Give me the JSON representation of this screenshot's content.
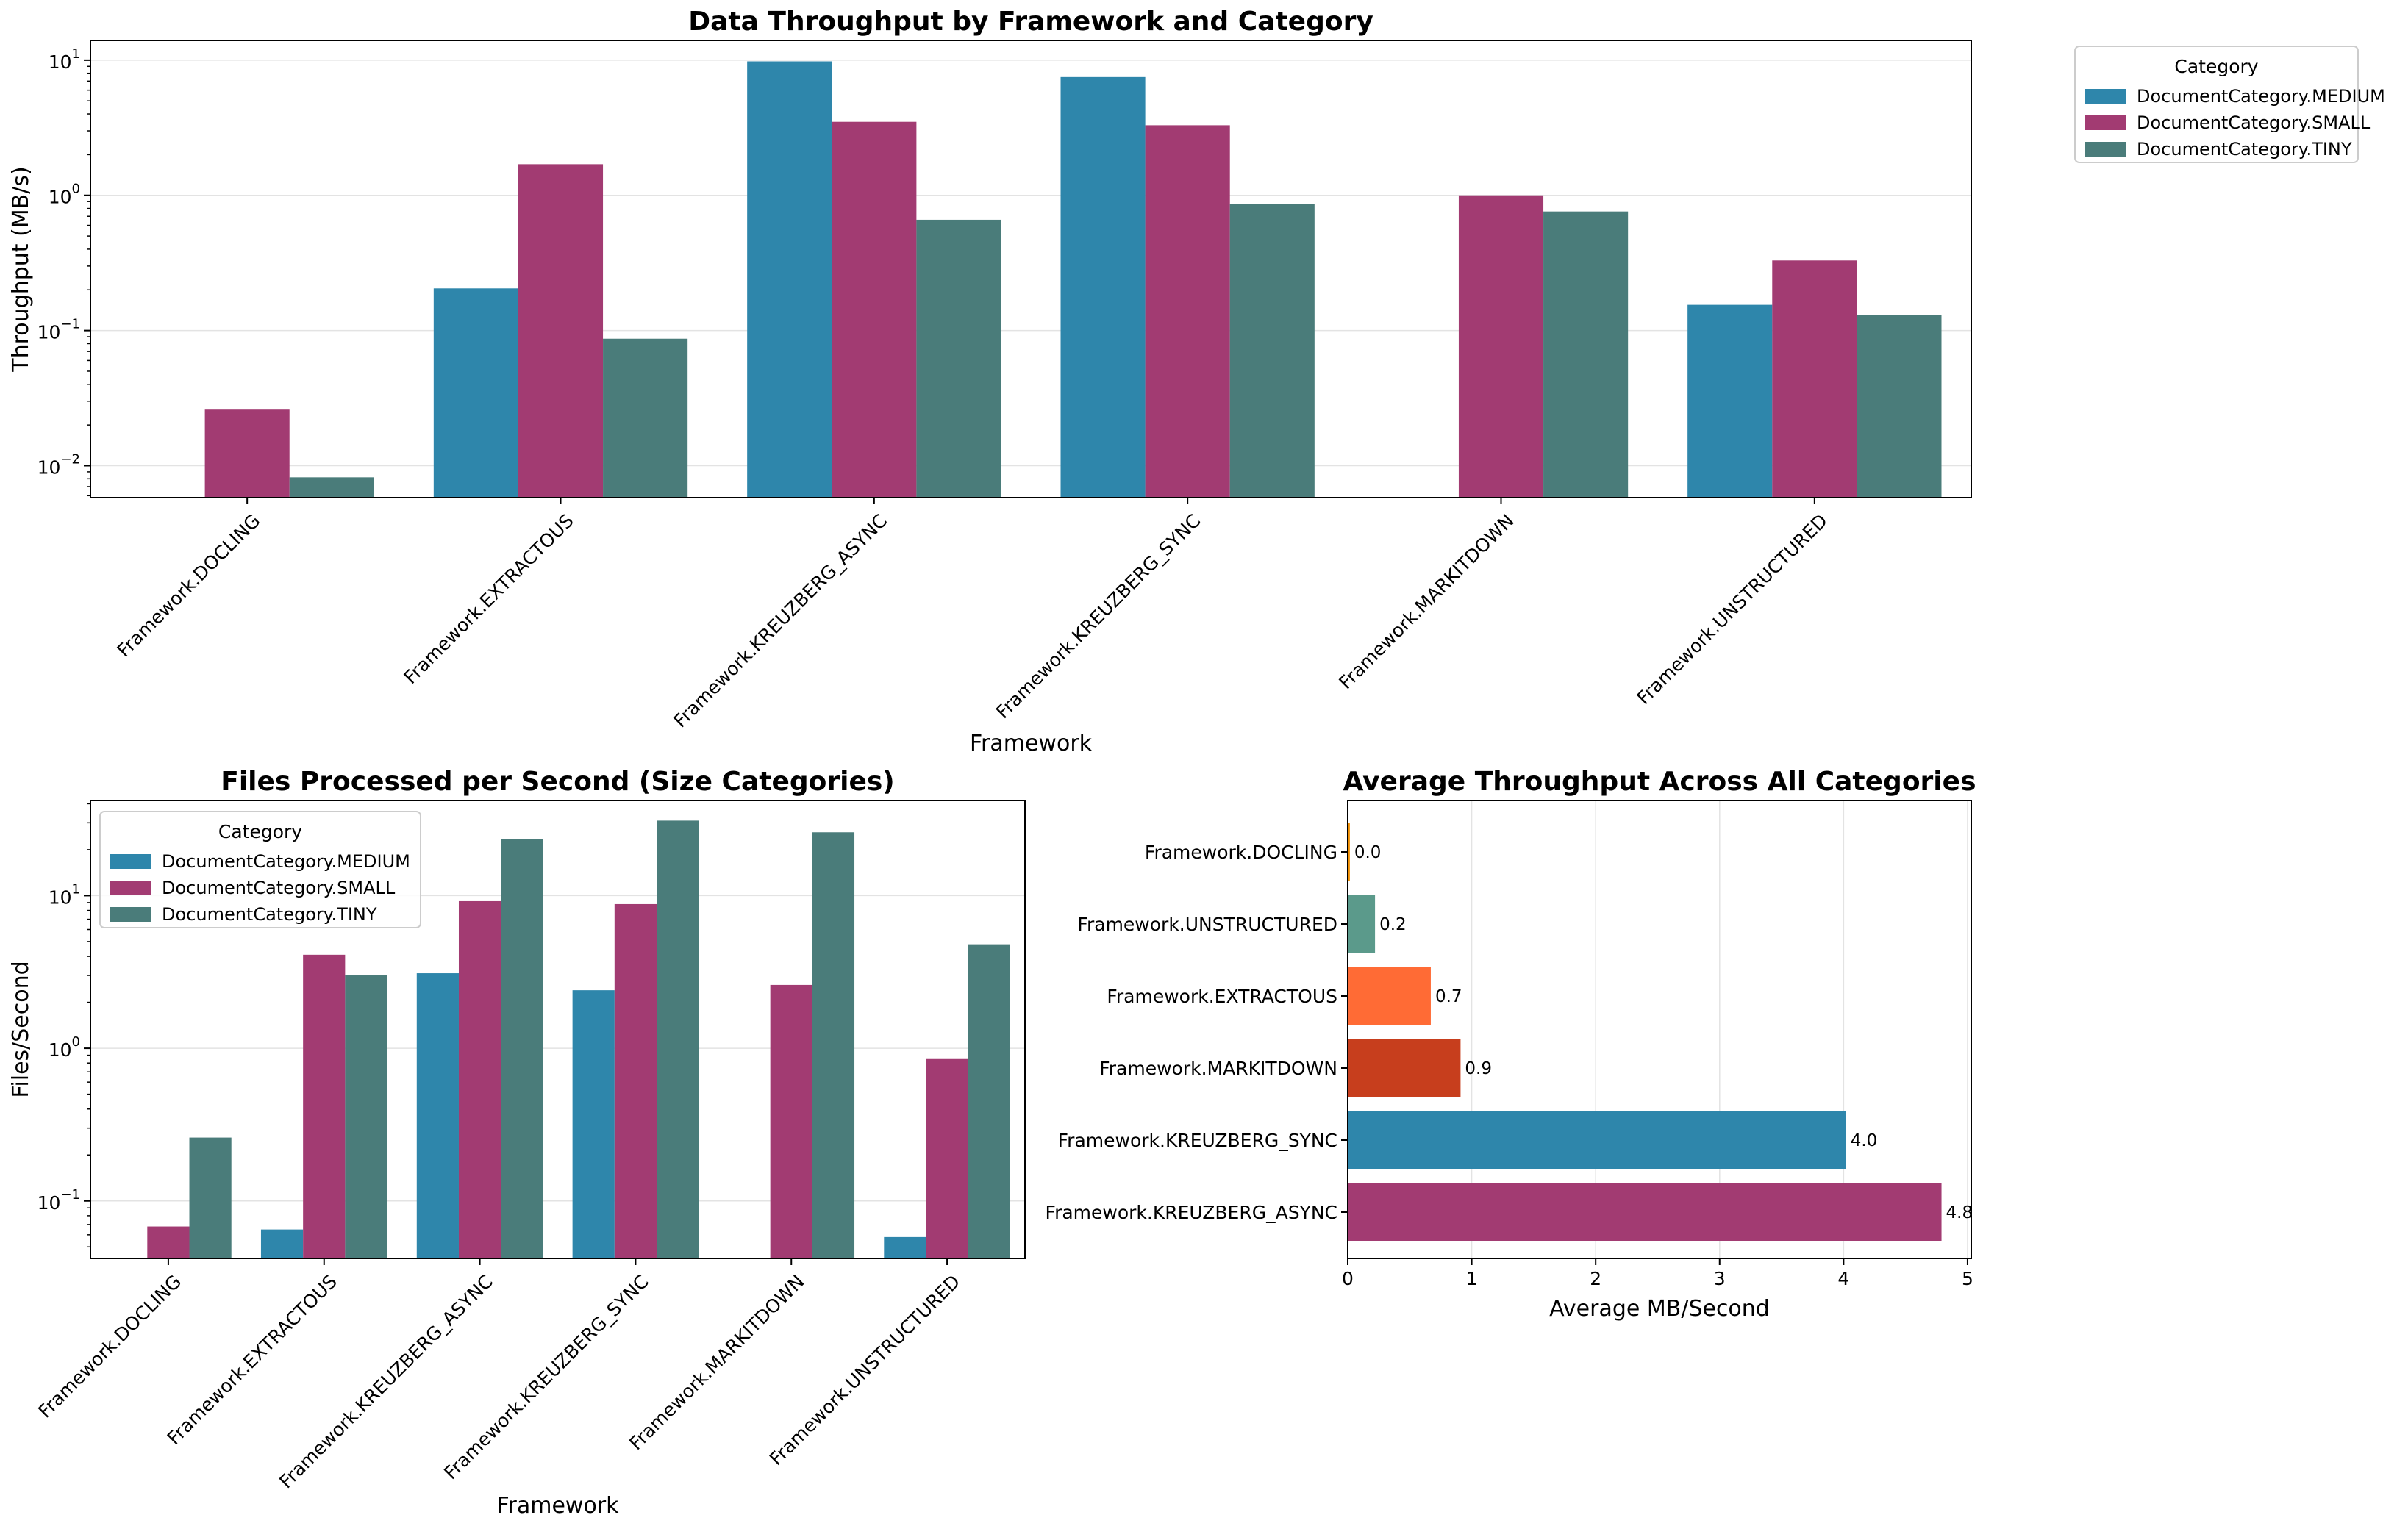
{
  "chart_data": [
    {
      "id": "top",
      "type": "bar",
      "title": "Data Throughput by Framework and Category",
      "xlabel": "Framework",
      "ylabel": "Throughput (MB/s)",
      "yscale": "log",
      "ylim": [
        0.0058,
        14
      ],
      "yticks": [
        {
          "b": "10",
          "e": "−2",
          "v": 0.01
        },
        {
          "b": "10",
          "e": "−1",
          "v": 0.1
        },
        {
          "b": "10",
          "e": "0",
          "v": 1
        },
        {
          "b": "10",
          "e": "1",
          "v": 10
        }
      ],
      "categories": [
        "Framework.DOCLING",
        "Framework.EXTRACTOUS",
        "Framework.KREUZBERG_ASYNC",
        "Framework.KREUZBERG_SYNC",
        "Framework.MARKITDOWN",
        "Framework.UNSTRUCTURED"
      ],
      "legend_title": "Category",
      "legend_position": "outside-right",
      "series": [
        {
          "name": "DocumentCategory.MEDIUM",
          "color": "#2E86AB",
          "values": [
            null,
            0.205,
            9.8,
            7.5,
            null,
            0.155
          ]
        },
        {
          "name": "DocumentCategory.SMALL",
          "color": "#A23B72",
          "values": [
            0.026,
            1.7,
            3.5,
            3.3,
            1.0,
            0.33
          ]
        },
        {
          "name": "DocumentCategory.TINY",
          "color": "#4A7C7A",
          "values": [
            0.0082,
            0.087,
            0.66,
            0.86,
            0.76,
            0.13
          ]
        }
      ]
    },
    {
      "id": "bottom-left",
      "type": "bar",
      "title": "Files Processed per Second (Size Categories)",
      "xlabel": "Framework",
      "ylabel": "Files/Second",
      "yscale": "log",
      "ylim": [
        0.042,
        42
      ],
      "yticks": [
        {
          "b": "10",
          "e": "−1",
          "v": 0.1
        },
        {
          "b": "10",
          "e": "0",
          "v": 1
        },
        {
          "b": "10",
          "e": "1",
          "v": 10
        }
      ],
      "categories": [
        "Framework.DOCLING",
        "Framework.EXTRACTOUS",
        "Framework.KREUZBERG_ASYNC",
        "Framework.KREUZBERG_SYNC",
        "Framework.MARKITDOWN",
        "Framework.UNSTRUCTURED"
      ],
      "legend_title": "Category",
      "legend_position": "upper-left",
      "series": [
        {
          "name": "DocumentCategory.MEDIUM",
          "color": "#2E86AB",
          "values": [
            null,
            0.065,
            3.1,
            2.4,
            null,
            0.058
          ]
        },
        {
          "name": "DocumentCategory.SMALL",
          "color": "#A23B72",
          "values": [
            0.068,
            4.1,
            9.2,
            8.8,
            2.6,
            0.85
          ]
        },
        {
          "name": "DocumentCategory.TINY",
          "color": "#4A7C7A",
          "values": [
            0.26,
            3.0,
            23.5,
            31.0,
            26.0,
            4.8
          ]
        }
      ]
    },
    {
      "id": "bottom-right",
      "type": "barh",
      "title": "Average Throughput Across All Categories",
      "xlabel": "Average MB/Second",
      "xlim": [
        0,
        5.03
      ],
      "xticks": [
        0,
        1,
        2,
        3,
        4,
        5
      ],
      "categories": [
        "Framework.DOCLING",
        "Framework.UNSTRUCTURED",
        "Framework.EXTRACTOUS",
        "Framework.MARKITDOWN",
        "Framework.KREUZBERG_SYNC",
        "Framework.KREUZBERG_ASYNC"
      ],
      "values": [
        0.017,
        0.22,
        0.67,
        0.91,
        4.02,
        4.79
      ],
      "value_labels": [
        "0.0",
        "0.2",
        "0.7",
        "0.9",
        "4.0",
        "4.8"
      ],
      "colors": [
        "#F18F01",
        "#5B9A8B",
        "#FF6B35",
        "#C73E1D",
        "#2E86AB",
        "#A23B72"
      ]
    }
  ]
}
